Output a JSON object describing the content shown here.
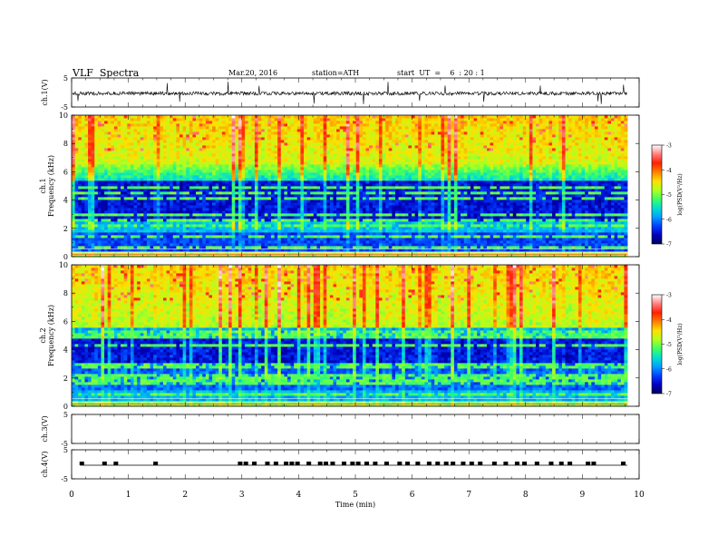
{
  "header": {
    "title": "VLF  Spectra",
    "date": "Mar.20, 2016",
    "station": "station=ATH",
    "start": "start  UT  =    6  : 20 : 1"
  },
  "chart_data": {
    "type": "heatmap",
    "xlabel": "Time  (min)",
    "xlim": [
      0,
      10
    ],
    "xticks": [
      "0",
      "1",
      "2",
      "3",
      "4",
      "5",
      "6",
      "7",
      "8",
      "9",
      "10"
    ],
    "panels": {
      "ch1_wave": {
        "ylabel": "ch.1(V)",
        "ylim": [
          -5,
          5
        ],
        "yticks": [
          "5",
          "-5"
        ],
        "kind": "waveform"
      },
      "ch1_spec": {
        "ylabel1": "ch.1",
        "ylabel2": "Frequency  (kHz)",
        "ylim": [
          0,
          10
        ],
        "yticks": [
          "0",
          "2",
          "4",
          "6",
          "8",
          "10"
        ],
        "kind": "spectrogram",
        "profile": "ch1"
      },
      "ch2_spec": {
        "ylabel1": "ch.2",
        "ylabel2": "Frequency  (kHz)",
        "ylim": [
          0,
          10
        ],
        "yticks": [
          "0",
          "2",
          "4",
          "6",
          "8",
          "10"
        ],
        "kind": "spectrogram",
        "profile": "ch2"
      },
      "ch3_wave": {
        "ylabel": "ch.3(V)",
        "ylim": [
          -5,
          5
        ],
        "yticks": [
          "5",
          "-5"
        ],
        "kind": "flat"
      },
      "ch4_wave": {
        "ylabel": "ch.4(V)",
        "ylim": [
          -5,
          5
        ],
        "yticks": [
          "5",
          "-5"
        ],
        "kind": "pulses"
      }
    },
    "colorbar": {
      "label": "log(PSD(V²/Hz)",
      "range": [
        -7,
        -3
      ],
      "ticks": [
        "-3",
        "-4",
        "-5",
        "-6",
        "-7"
      ],
      "colors": [
        "#000060",
        "#0000c0",
        "#0040ff",
        "#00a0ff",
        "#00e0d0",
        "#40ff60",
        "#b0ff20",
        "#ffe000",
        "#ff8000",
        "#ff2000",
        "#ff8080",
        "#ffffff"
      ]
    },
    "ch4_pulse_minutes": [
      0.18,
      0.58,
      0.78,
      1.48,
      2.97,
      3.07,
      3.22,
      3.45,
      3.6,
      3.78,
      3.88,
      3.98,
      4.18,
      4.38,
      4.48,
      4.6,
      4.8,
      4.95,
      5.05,
      5.2,
      5.35,
      5.55,
      5.78,
      5.92,
      6.1,
      6.3,
      6.45,
      6.6,
      6.72,
      6.9,
      7.05,
      7.2,
      7.45,
      7.65,
      7.85,
      7.98,
      8.2,
      8.45,
      8.63,
      8.78,
      9.1,
      9.2,
      9.72
    ]
  }
}
